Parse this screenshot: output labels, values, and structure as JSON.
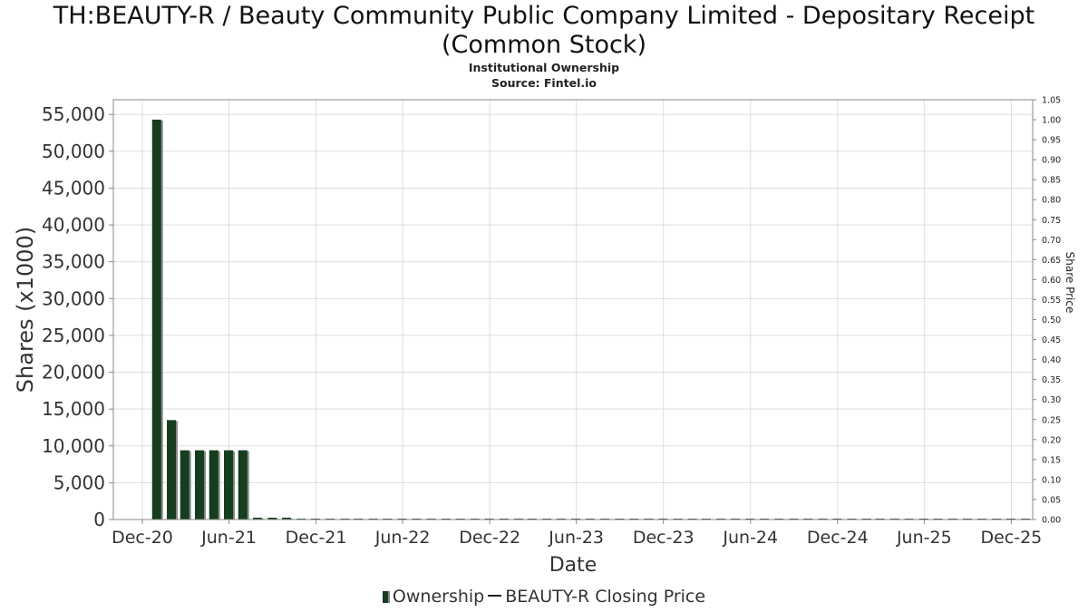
{
  "header": {
    "title_line1": "TH:BEAUTY-R / Beauty Community Public Company Limited - Depositary Receipt",
    "title_line2": "(Common Stock)",
    "subtitle_line1": "Institutional Ownership",
    "subtitle_line2": "Source: Fintel.io"
  },
  "legend": {
    "ownership_label": "Ownership",
    "price_label": "BEAUTY-R Closing Price"
  },
  "colors": {
    "bar": "#153d1e",
    "bar_shadow": "#8a8a8a",
    "grid": "#dddddd",
    "frame": "#888888"
  },
  "chart_data": {
    "type": "bar",
    "title": "TH:BEAUTY-R / Beauty Community Public Company Limited - Depositary Receipt (Common Stock)",
    "xlabel": "Date",
    "ylabel": "Shares (x1000)",
    "y2label": "Share Price",
    "ylim": [
      0,
      57000
    ],
    "y2lim": [
      0,
      1.05
    ],
    "xlim": [
      "2020-10-01",
      "2026-01-15"
    ],
    "grid": true,
    "legend_position": "bottom",
    "x_ticks": [
      "2020-12-01",
      "2021-06-01",
      "2021-12-01",
      "2022-06-01",
      "2022-12-01",
      "2023-06-01",
      "2023-12-01",
      "2024-06-01",
      "2024-12-01",
      "2025-06-01",
      "2025-12-01"
    ],
    "x_tick_labels": [
      "Dec-20",
      "Jun-21",
      "Dec-21",
      "Jun-22",
      "Dec-22",
      "Jun-23",
      "Dec-23",
      "Jun-24",
      "Dec-24",
      "Jun-25",
      "Dec-25"
    ],
    "y_ticks": [
      0,
      5000,
      10000,
      15000,
      20000,
      25000,
      30000,
      35000,
      40000,
      45000,
      50000,
      55000
    ],
    "y_tick_labels": [
      "0",
      "5,000",
      "10,000",
      "15,000",
      "20,000",
      "25,000",
      "30,000",
      "35,000",
      "40,000",
      "45,000",
      "50,000",
      "55,000"
    ],
    "y2_ticks": [
      0,
      0.05,
      0.1,
      0.15,
      0.2,
      0.25,
      0.3,
      0.35,
      0.4,
      0.45,
      0.5,
      0.55,
      0.6,
      0.65,
      0.7,
      0.75,
      0.8,
      0.85,
      0.9,
      0.95,
      1.0,
      1.05
    ],
    "y2_tick_labels": [
      "0.00",
      "0.05",
      "0.10",
      "0.15",
      "0.20",
      "0.25",
      "0.30",
      "0.35",
      "0.40",
      "0.45",
      "0.50",
      "0.55",
      "0.60",
      "0.65",
      "0.70",
      "0.75",
      "0.80",
      "0.85",
      "0.90",
      "0.95",
      "1.00",
      "1.05"
    ],
    "series": [
      {
        "name": "Ownership",
        "type": "bar",
        "x": [
          "2020-12-31",
          "2021-01-31",
          "2021-02-28",
          "2021-03-31",
          "2021-04-30",
          "2021-05-31",
          "2021-06-30",
          "2021-07-31",
          "2021-08-31",
          "2021-09-30",
          "2021-10-31",
          "2021-11-30",
          "2021-12-31",
          "2022-01-31",
          "2022-02-28",
          "2022-03-31",
          "2022-04-30",
          "2022-05-31",
          "2022-06-30",
          "2022-07-31",
          "2022-08-31",
          "2022-09-30",
          "2022-10-31",
          "2022-11-30",
          "2022-12-31",
          "2023-01-31",
          "2023-02-28",
          "2023-03-31",
          "2023-04-30",
          "2023-05-31",
          "2023-06-30",
          "2023-07-31",
          "2023-08-31",
          "2023-09-30",
          "2023-10-31",
          "2023-11-30",
          "2023-12-31",
          "2024-01-31",
          "2024-02-29",
          "2024-03-31",
          "2024-04-30",
          "2024-05-31",
          "2024-06-30",
          "2024-07-31",
          "2024-08-31",
          "2024-09-30",
          "2024-10-31",
          "2024-11-30",
          "2024-12-31",
          "2025-01-31",
          "2025-02-28",
          "2025-03-31",
          "2025-04-30",
          "2025-05-31",
          "2025-06-30",
          "2025-07-31",
          "2025-08-31",
          "2025-09-30",
          "2025-10-31",
          "2025-11-30",
          "2025-12-31"
        ],
        "values": [
          54300,
          13500,
          9400,
          9400,
          9400,
          9400,
          9400,
          250,
          250,
          250,
          50,
          50,
          50,
          50,
          50,
          50,
          50,
          50,
          50,
          50,
          50,
          50,
          50,
          50,
          50,
          50,
          50,
          50,
          50,
          50,
          50,
          50,
          50,
          50,
          50,
          50,
          50,
          50,
          50,
          50,
          50,
          50,
          50,
          50,
          50,
          50,
          50,
          50,
          50,
          50,
          50,
          50,
          50,
          50,
          50,
          50,
          50,
          50,
          50,
          50,
          50
        ]
      },
      {
        "name": "BEAUTY-R Closing Price",
        "type": "line",
        "x": [],
        "values": []
      }
    ]
  }
}
